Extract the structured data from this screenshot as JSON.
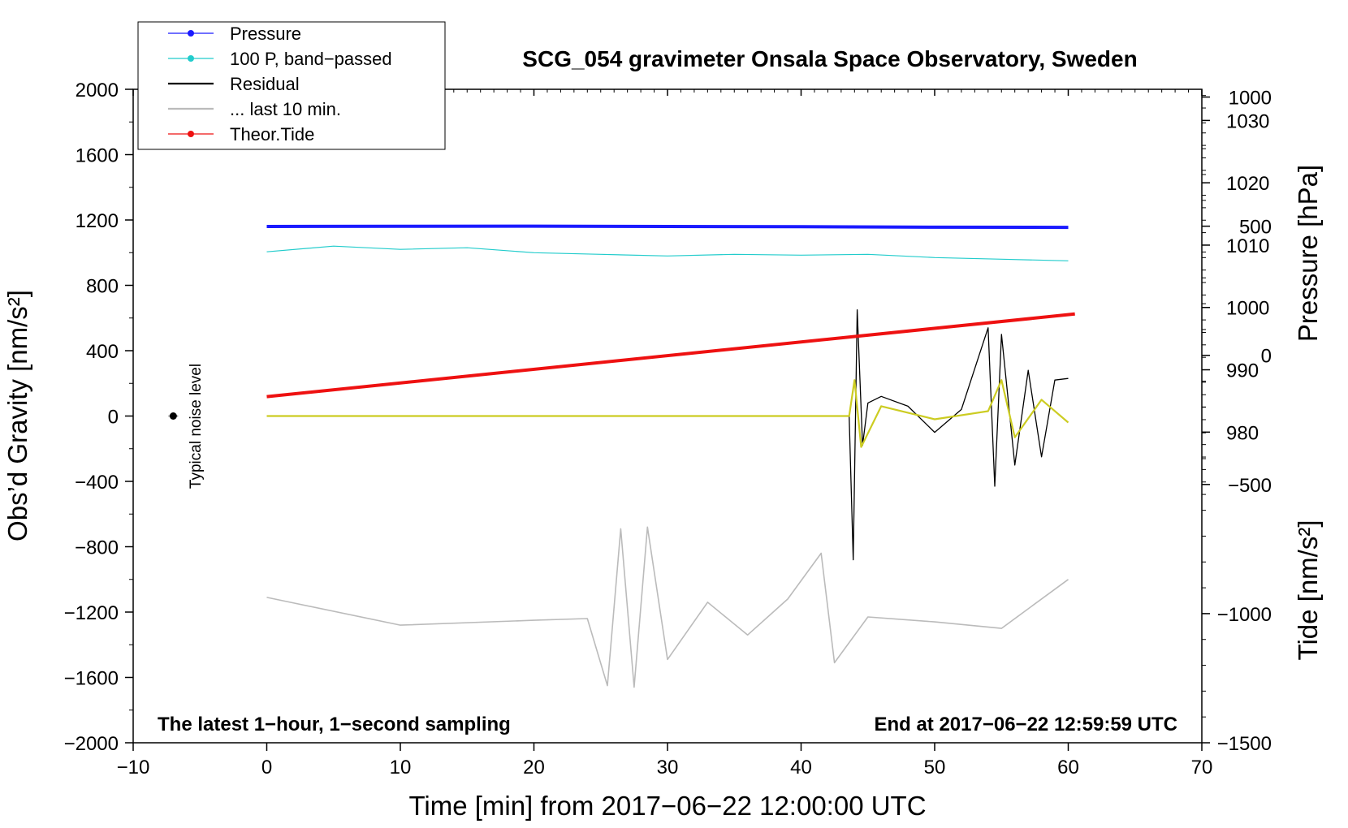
{
  "chart_data": {
    "type": "line",
    "title": "SCG_054 gravimeter Onsala Space Observatory, Sweden",
    "xlabel": "Time [min] from 2017−06−22 12:00:00 UTC",
    "ylabel_left": "Obs’d Gravity [nm/s²]",
    "ylabel_right_top": "Pressure [hPa]",
    "ylabel_right_bottom": "Tide [nm/s²]",
    "xlim": [
      -10,
      70
    ],
    "ylim_left": [
      -2000,
      2000
    ],
    "ylim_right_top": [
      970,
      1035
    ],
    "ylim_right_bottom": [
      -1500,
      1030
    ],
    "x_ticks": [
      -10,
      0,
      10,
      20,
      30,
      40,
      50,
      60,
      70
    ],
    "x_tick_labels": [
      "−10",
      "0",
      "10",
      "20",
      "30",
      "40",
      "50",
      "60",
      "70"
    ],
    "y_left_ticks": [
      2000,
      1600,
      1200,
      800,
      400,
      0,
      -400,
      -800,
      -1200,
      -1600,
      -2000
    ],
    "y_left_tick_labels": [
      "2000",
      "1600",
      "1200",
      "800",
      "400",
      "0",
      "−400",
      "−800",
      "−1200",
      "−1600",
      "−2000"
    ],
    "y_right_top_ticks": [
      1030,
      1020,
      1010,
      1000,
      990,
      980
    ],
    "y_right_top_tick_labels": [
      "1030",
      "1020",
      "1010",
      "1000",
      "990",
      "980"
    ],
    "y_right_bottom_ticks": [
      1000,
      500,
      0,
      -500,
      -1000,
      -1500
    ],
    "y_right_bottom_tick_labels": [
      "1000",
      "500",
      "0",
      "−500",
      "−1000",
      "−1500"
    ],
    "legend_position": "top-left",
    "legend": [
      {
        "label": "Pressure",
        "color": "#1a1aff",
        "marker": "dot"
      },
      {
        "label": "100 P, band−passed",
        "color": "#22cccc",
        "marker": "dot"
      },
      {
        "label": "Residual",
        "color": "#000000",
        "marker": "none"
      },
      {
        "label": "... last 10 min.",
        "color": "#bbbbbb",
        "marker": "none"
      },
      {
        "label": "Theor.Tide",
        "color": "#ee1111",
        "marker": "dot"
      }
    ],
    "annotations": {
      "bottom_left": "The latest 1−hour, 1−second sampling",
      "bottom_right": "End at 2017−06−22 12:59:59 UTC",
      "noise_label": "Typical noise level"
    },
    "noise_marker": {
      "x": -7,
      "y": 0
    },
    "series": [
      {
        "name": "Pressure",
        "color": "#1a1aff",
        "axis": "left",
        "x": [
          0,
          10,
          20,
          30,
          40,
          50,
          60
        ],
        "y": [
          1160,
          1161,
          1162,
          1160,
          1159,
          1156,
          1155
        ]
      },
      {
        "name": "100 P, band−passed",
        "color": "#22cccc",
        "axis": "left",
        "x": [
          0,
          5,
          10,
          15,
          20,
          25,
          30,
          35,
          40,
          45,
          50,
          55,
          60
        ],
        "y": [
          1005,
          1040,
          1020,
          1030,
          1000,
          990,
          980,
          990,
          985,
          990,
          970,
          960,
          950
        ]
      },
      {
        "name": "Residual",
        "color": "#000000",
        "axis": "left",
        "x": [
          0,
          43.6,
          43.9,
          44.2,
          44.6,
          45,
          46,
          48,
          50,
          52,
          54,
          54.5,
          55,
          56,
          57,
          58,
          59,
          60
        ],
        "y": [
          0,
          0,
          -880,
          650,
          -180,
          80,
          120,
          60,
          -100,
          40,
          540,
          -430,
          500,
          -300,
          280,
          -250,
          220,
          230
        ]
      },
      {
        "name": "Residual (filtered)",
        "color": "#cccc22",
        "axis": "left",
        "x": [
          0,
          43.6,
          44,
          44.5,
          46,
          50,
          54,
          55,
          56,
          58,
          60
        ],
        "y": [
          0,
          0,
          220,
          -190,
          60,
          -20,
          30,
          220,
          -130,
          100,
          -40
        ]
      },
      {
        "name": "... last 10 min.",
        "color": "#bbbbbb",
        "axis": "left",
        "x": [
          0,
          10,
          20,
          24,
          25.5,
          26.5,
          27.5,
          28.5,
          30,
          33,
          36,
          39,
          41.5,
          42.5,
          45,
          50,
          55,
          60
        ],
        "y": [
          -1110,
          -1280,
          -1250,
          -1240,
          -1650,
          -690,
          -1660,
          -680,
          -1490,
          -1140,
          -1340,
          -1120,
          -840,
          -1510,
          -1230,
          -1260,
          -1300,
          -1000
        ]
      },
      {
        "name": "Theor.Tide",
        "color": "#ee1111",
        "axis": "right_bottom",
        "x": [
          0,
          60.5
        ],
        "y": [
          -160,
          160
        ]
      }
    ]
  }
}
